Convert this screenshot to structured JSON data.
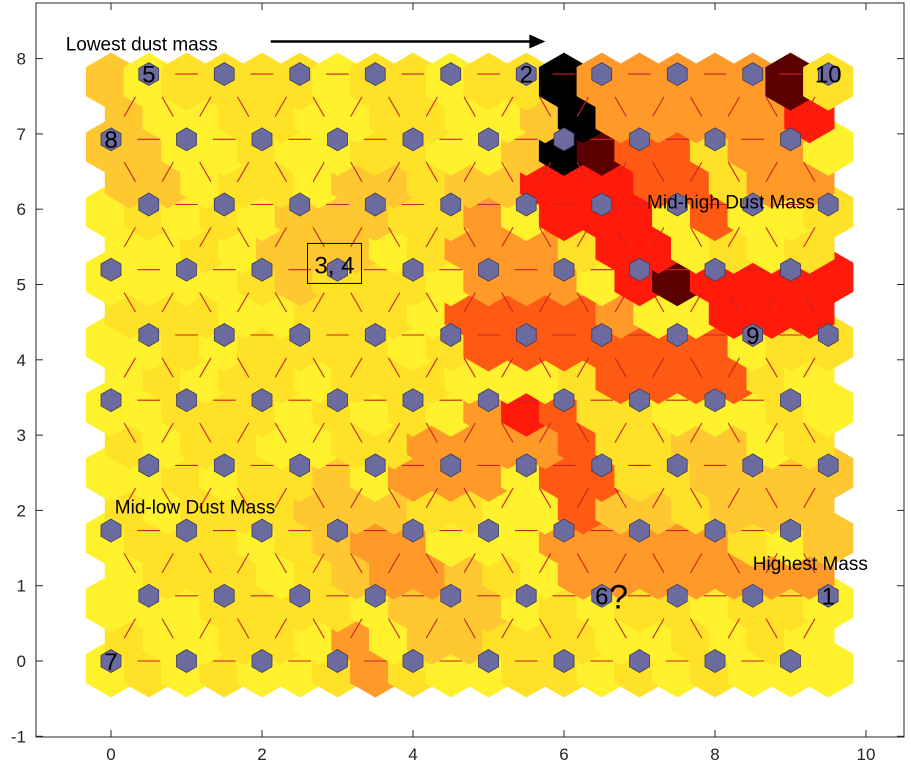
{
  "chart_data": {
    "type": "heatmap",
    "title": "",
    "xlabel": "",
    "ylabel": "",
    "xlim": [
      -1,
      10.5
    ],
    "ylim": [
      -1,
      8.75
    ],
    "x_ticks": [
      "0",
      "2",
      "4",
      "6",
      "8",
      "10"
    ],
    "y_ticks": [
      "-1",
      "0",
      "1",
      "2",
      "3",
      "4",
      "5",
      "6",
      "7",
      "8"
    ],
    "grid": false,
    "colormap": "hot",
    "colors": {
      "black": "#000000",
      "dark_red": "#5a0000",
      "red": "#ff1a0a",
      "orange_red": "#ff5a14",
      "orange": "#ff9a28",
      "light_orange": "#ffc830",
      "yellow": "#ffe227",
      "bright_yellow": "#fff22c",
      "node_fill": "#6b6ba0",
      "connector": "#cc2222"
    },
    "neuron_grid": {
      "columns": 10,
      "rows": 8,
      "row_offset_odd": 0.5,
      "row_spacing": 0.866
    },
    "labels": [
      {
        "text": "Lowest dust mass",
        "x": -0.6,
        "y": 8.2,
        "arrow_to": [
          5.7,
          8.2
        ]
      },
      {
        "text": "Mid-high Dust Mass",
        "x": 7.1,
        "y": 6.1
      },
      {
        "text": "Mid-low Dust Mass",
        "x": 0.05,
        "y": 2.05
      },
      {
        "text": "Highest Mass",
        "x": 8.5,
        "y": 1.3
      }
    ],
    "boxed_label": {
      "text": "3, 4",
      "x": 3.0,
      "y": 5.2
    },
    "numbered_nodes": [
      {
        "label": "5",
        "x": 0.5,
        "y": 7.8
      },
      {
        "label": "2",
        "x": 5.5,
        "y": 7.8
      },
      {
        "label": "10",
        "x": 9.5,
        "y": 7.8
      },
      {
        "label": "8",
        "x": 0.0,
        "y": 6.93
      },
      {
        "label": "9",
        "x": 8.5,
        "y": 4.33
      },
      {
        "label": "6",
        "x": 6.5,
        "y": 0.87
      },
      {
        "label": "1",
        "x": 9.5,
        "y": 0.87
      },
      {
        "label": "7",
        "x": 0.0,
        "y": 0.0
      }
    ],
    "question_mark": {
      "text": "?",
      "x": 6.75,
      "y": 0.87
    }
  }
}
